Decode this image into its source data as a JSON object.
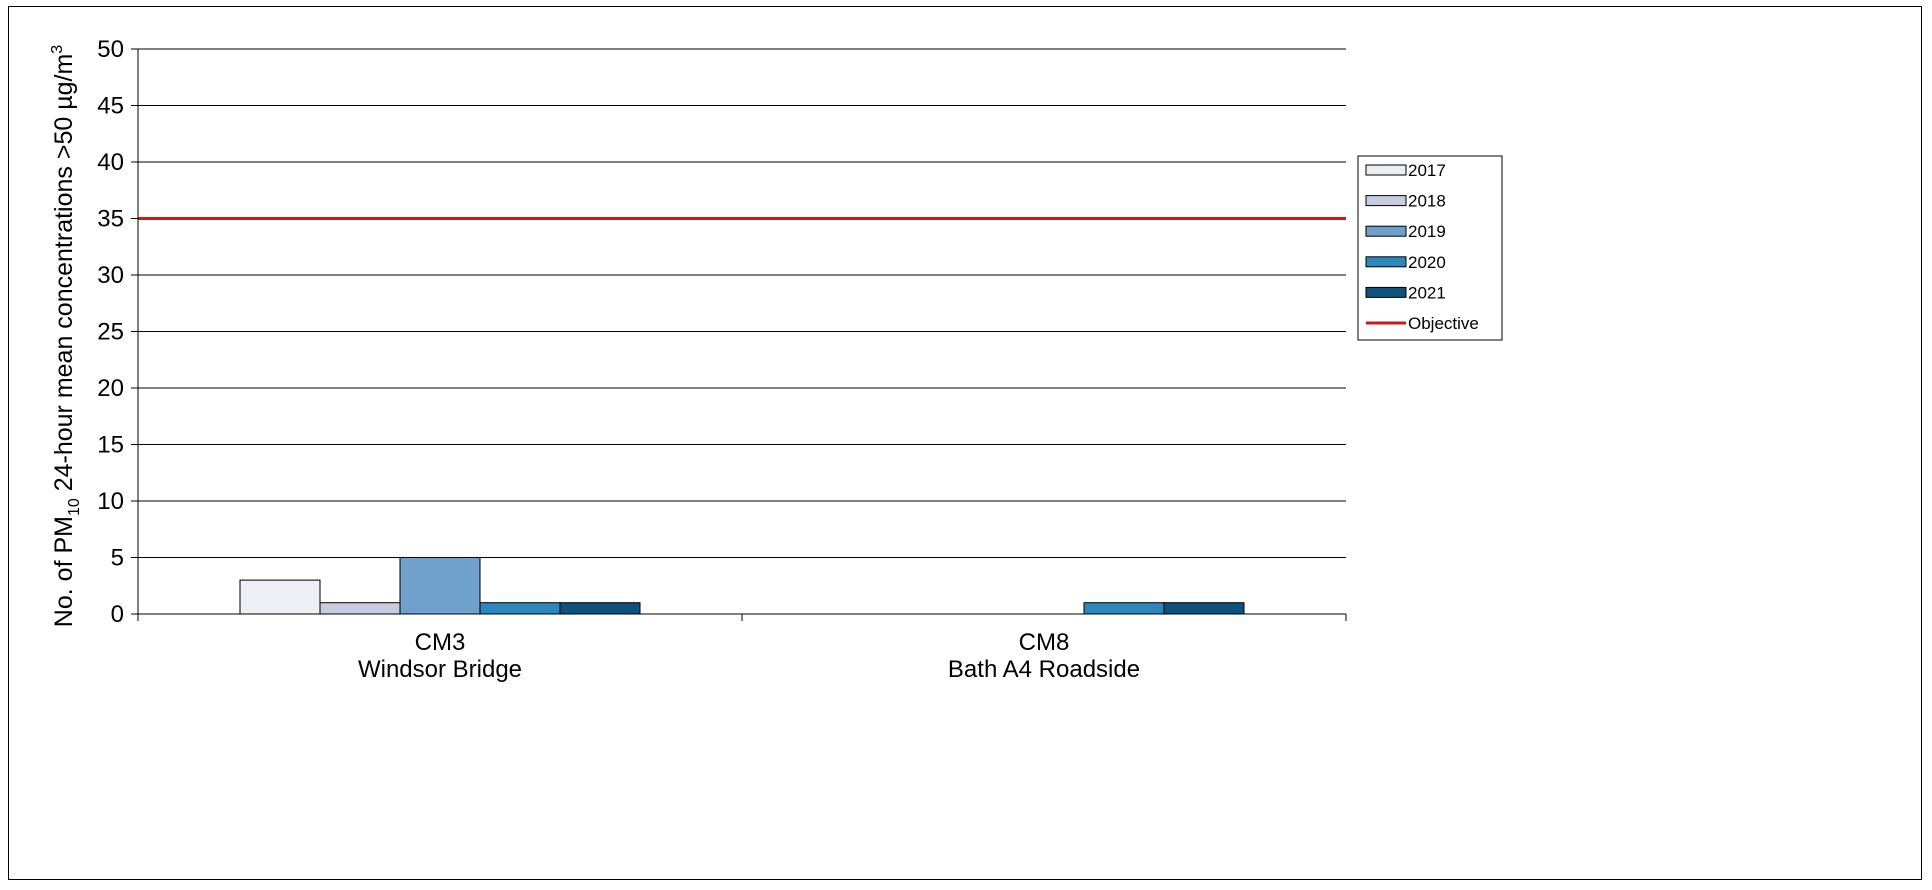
{
  "chart_data": {
    "type": "bar",
    "categories": [
      {
        "line1": "CM3",
        "line2": "Windsor Bridge"
      },
      {
        "line1": "CM8",
        "line2": "Bath A4 Roadside"
      }
    ],
    "series": [
      {
        "name": "2017",
        "values": [
          3,
          0
        ],
        "color": "#eeeef5"
      },
      {
        "name": "2018",
        "values": [
          1,
          0
        ],
        "color": "#c6cde0"
      },
      {
        "name": "2019",
        "values": [
          5,
          0
        ],
        "color": "#6f9fcb"
      },
      {
        "name": "2020",
        "values": [
          1,
          1
        ],
        "color": "#2d87bd"
      },
      {
        "name": "2021",
        "values": [
          1,
          1
        ],
        "color": "#0d527e"
      }
    ],
    "objective": {
      "name": "Objective",
      "value": 35,
      "color": "#cc1a1a"
    },
    "ylim": [
      0,
      50
    ],
    "yticks": [
      0,
      5,
      10,
      15,
      20,
      25,
      30,
      35,
      40,
      45,
      50
    ],
    "ylabel": {
      "prefix": "No. of PM",
      "sub": "10",
      "suffix": " 24-hour mean concentrations >50 µg/m",
      "sup": "3"
    },
    "xlabel": "",
    "grid": "horizontal",
    "legend_position": "right"
  }
}
